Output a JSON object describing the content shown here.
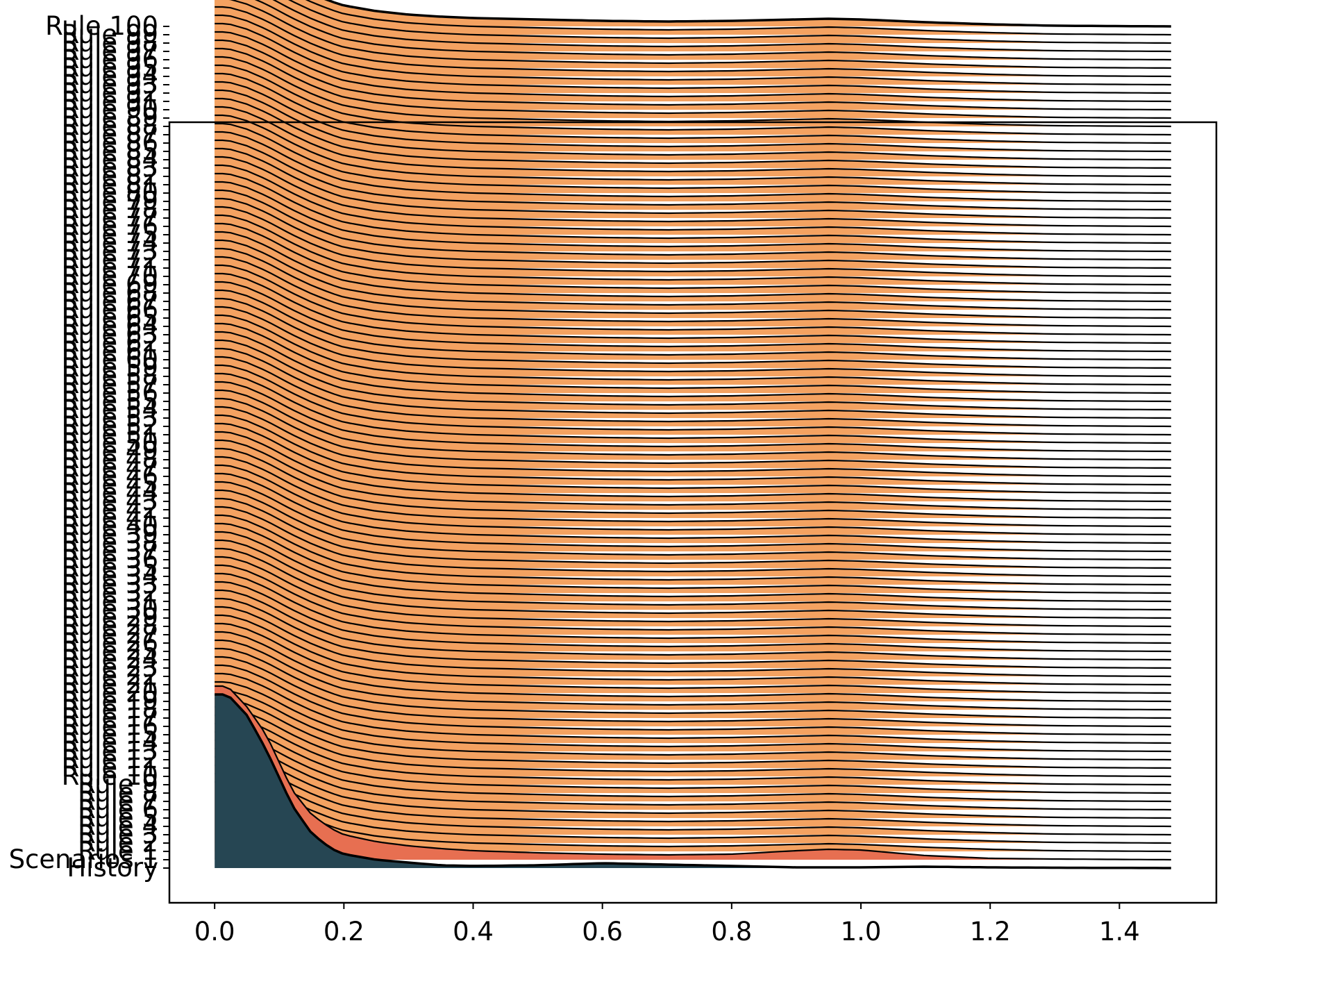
{
  "chart_data": {
    "type": "area",
    "title": "",
    "xlabel": "",
    "ylabel": "",
    "xlim": [
      -0.07,
      1.55
    ],
    "x_ticks": [
      "0.0",
      "0.2",
      "0.4",
      "0.6",
      "0.8",
      "1.0",
      "1.2",
      "1.4"
    ],
    "x_tick_values": [
      0.0,
      0.2,
      0.4,
      0.6,
      0.8,
      1.0,
      1.2,
      1.4
    ],
    "x_range": [
      0.0,
      1.48
    ],
    "ridgeline_count": 102,
    "ridge_spacing": 0.012,
    "y_tick_labels": [
      "History",
      "Scenarios 1",
      "Rule 1",
      "Rule 2",
      "Rule 3",
      "Rule 4",
      "Rule 5",
      "Rule 6",
      "Rule 7",
      "Rule 8",
      "Rule 9",
      "Rule 10",
      "Rule 11",
      "Rule 12",
      "Rule 13",
      "Rule 14",
      "Rule 15",
      "Rule 16",
      "Rule 17",
      "Rule 18",
      "Rule 19",
      "Rule 20",
      "Rule 21",
      "Rule 22",
      "Rule 23",
      "Rule 24",
      "Rule 25",
      "Rule 26",
      "Rule 27",
      "Rule 28",
      "Rule 29",
      "Rule 30",
      "Rule 31",
      "Rule 32",
      "Rule 33",
      "Rule 34",
      "Rule 35",
      "Rule 36",
      "Rule 37",
      "Rule 38",
      "Rule 39",
      "Rule 40",
      "Rule 41",
      "Rule 42",
      "Rule 43",
      "Rule 44",
      "Rule 45",
      "Rule 46",
      "Rule 47",
      "Rule 48",
      "Rule 49",
      "Rule 50",
      "Rule 51",
      "Rule 52",
      "Rule 53",
      "Rule 54",
      "Rule 55",
      "Rule 56",
      "Rule 57",
      "Rule 58",
      "Rule 59",
      "Rule 60",
      "Rule 61",
      "Rule 62",
      "Rule 63",
      "Rule 64",
      "Rule 65",
      "Rule 66",
      "Rule 67",
      "Rule 68",
      "Rule 69",
      "Rule 70",
      "Rule 71",
      "Rule 72",
      "Rule 73",
      "Rule 74",
      "Rule 75",
      "Rule 76",
      "Rule 77",
      "Rule 78",
      "Rule 79",
      "Rule 80",
      "Rule 81",
      "Rule 82",
      "Rule 83",
      "Rule 84",
      "Rule 85",
      "Rule 86",
      "Rule 87",
      "Rule 88",
      "Rule 89",
      "Rule 90",
      "Rule 91",
      "Rule 92",
      "Rule 93",
      "Rule 94",
      "Rule 95",
      "Rule 96",
      "Rule 97",
      "Rule 98",
      "Rule 99",
      "Rule 100"
    ],
    "series": [
      {
        "color": "#264653",
        "density_x": [
          0.0,
          0.02,
          0.05,
          0.08,
          0.1,
          0.12,
          0.15,
          0.18,
          0.2,
          0.25,
          0.3,
          0.35,
          0.4,
          0.5,
          0.6,
          0.7,
          0.8,
          0.9,
          1.0,
          1.1,
          1.2,
          1.3,
          1.48
        ],
        "density_y": [
          0.25,
          0.25,
          0.22,
          0.17,
          0.13,
          0.09,
          0.05,
          0.028,
          0.02,
          0.012,
          0.008,
          0.004,
          0.003,
          0.004,
          0.007,
          0.005,
          0.003,
          0.001,
          0.001,
          0.002,
          0.001,
          0.0005,
          0.0
        ]
      },
      {
        "color": "#e76f51",
        "density_x": [
          0.0,
          0.02,
          0.05,
          0.08,
          0.1,
          0.12,
          0.15,
          0.18,
          0.2,
          0.25,
          0.3,
          0.35,
          0.4,
          0.5,
          0.6,
          0.7,
          0.8,
          0.9,
          0.95,
          1.0,
          1.05,
          1.1,
          1.2,
          1.3,
          1.48
        ],
        "density_y": [
          0.25,
          0.25,
          0.22,
          0.18,
          0.14,
          0.1,
          0.065,
          0.045,
          0.036,
          0.026,
          0.02,
          0.016,
          0.013,
          0.01,
          0.008,
          0.007,
          0.008,
          0.013,
          0.015,
          0.014,
          0.01,
          0.006,
          0.002,
          0.001,
          0.0
        ]
      },
      {
        "name_pattern": "Rule 1 – Rule 100",
        "color": "#f4a261",
        "density_x": [
          0.0,
          0.02,
          0.05,
          0.08,
          0.1,
          0.12,
          0.15,
          0.18,
          0.2,
          0.25,
          0.3,
          0.35,
          0.4,
          0.5,
          0.6,
          0.7,
          0.8,
          0.9,
          0.95,
          1.0,
          1.05,
          1.1,
          1.2,
          1.3,
          1.48
        ],
        "density_y": [
          0.1,
          0.1,
          0.092,
          0.08,
          0.07,
          0.06,
          0.047,
          0.036,
          0.03,
          0.022,
          0.017,
          0.014,
          0.012,
          0.01,
          0.008,
          0.007,
          0.008,
          0.01,
          0.011,
          0.01,
          0.008,
          0.006,
          0.003,
          0.001,
          0.0
        ]
      }
    ],
    "grid": false,
    "legend": "none"
  }
}
